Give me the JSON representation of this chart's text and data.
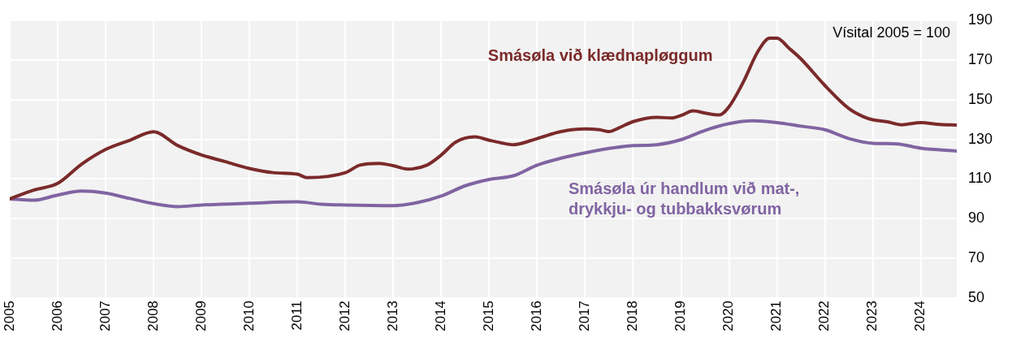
{
  "chart_data": {
    "type": "line",
    "annotations": [
      "Vísital 2005 = 100"
    ],
    "xlim": [
      2005,
      2024.75
    ],
    "xticks": [
      2005,
      2006,
      2007,
      2008,
      2009,
      2010,
      2011,
      2012,
      2013,
      2014,
      2015,
      2016,
      2017,
      2018,
      2019,
      2020,
      2021,
      2022,
      2023,
      2024
    ],
    "ylim": [
      50,
      190
    ],
    "yticks": [
      50,
      70,
      90,
      110,
      130,
      150,
      170,
      190
    ],
    "grid": true,
    "legend": false,
    "marker": "none",
    "line_style": "solid",
    "series": [
      {
        "name": "Smásøla við klædnapløggum",
        "color": "#7b2a2a",
        "x": [
          2005,
          2005.5,
          2006,
          2006.5,
          2007,
          2007.5,
          2008,
          2008.5,
          2009,
          2009.5,
          2010,
          2010.5,
          2011,
          2011.2,
          2012,
          2012.3,
          2012.7,
          2013,
          2013.3,
          2013.7,
          2014,
          2014.3,
          2014.7,
          2015,
          2015.25,
          2015.5,
          2016,
          2016.5,
          2017,
          2017.3,
          2017.5,
          2017.7,
          2018,
          2018.5,
          2018.8,
          2019,
          2019.25,
          2019.5,
          2019.8,
          2020,
          2020.3,
          2020.6,
          2020.85,
          2021,
          2021.25,
          2021.5,
          2022,
          2022.5,
          2022.8,
          2023,
          2023.3,
          2023.6,
          2024,
          2024.4,
          2024.75
        ],
        "values": [
          100,
          104.4,
          107.8,
          117.5,
          124.9,
          129.5,
          133.8,
          126.9,
          122.1,
          118.7,
          115.3,
          113.2,
          112.4,
          110.7,
          113.2,
          117,
          117.9,
          116.7,
          115,
          117,
          122.1,
          128.6,
          131.2,
          129.5,
          128.2,
          127.3,
          130.4,
          133.9,
          135.2,
          134.8,
          133.9,
          135.7,
          138.9,
          141.1,
          140.7,
          142,
          144.3,
          143.2,
          142.3,
          146.4,
          158.9,
          174.1,
          180.9,
          180.9,
          175.9,
          170.5,
          157.1,
          145.5,
          141.4,
          139.8,
          138.8,
          137.3,
          138.4,
          137.5,
          137.2
        ]
      },
      {
        "name": "Smásøla úr handlum við mat-, drykkju- og tubbakksvørum",
        "color": "#8064a2",
        "x": [
          2005,
          2005.5,
          2006,
          2006.5,
          2007,
          2007.5,
          2008,
          2008.5,
          2009,
          2010,
          2011,
          2011.5,
          2012,
          2013,
          2013.5,
          2014,
          2014.5,
          2015,
          2015.5,
          2016,
          2016.5,
          2017,
          2017.5,
          2018,
          2018.5,
          2019,
          2019.5,
          2020,
          2020.5,
          2021,
          2021.5,
          2022,
          2022.5,
          2023,
          2023.5,
          2024,
          2024.75
        ],
        "values": [
          100,
          99.3,
          101.9,
          103.9,
          102.9,
          100.2,
          97.6,
          96.1,
          96.9,
          97.8,
          98.5,
          97.3,
          96.9,
          96.6,
          98.1,
          101.4,
          106.6,
          109.8,
          111.6,
          117,
          120.5,
          123.2,
          125.4,
          126.8,
          127.3,
          129.8,
          134.5,
          137.9,
          139.3,
          138.4,
          136.6,
          134.8,
          130.4,
          128,
          127.7,
          125.5,
          124.1
        ]
      }
    ]
  }
}
